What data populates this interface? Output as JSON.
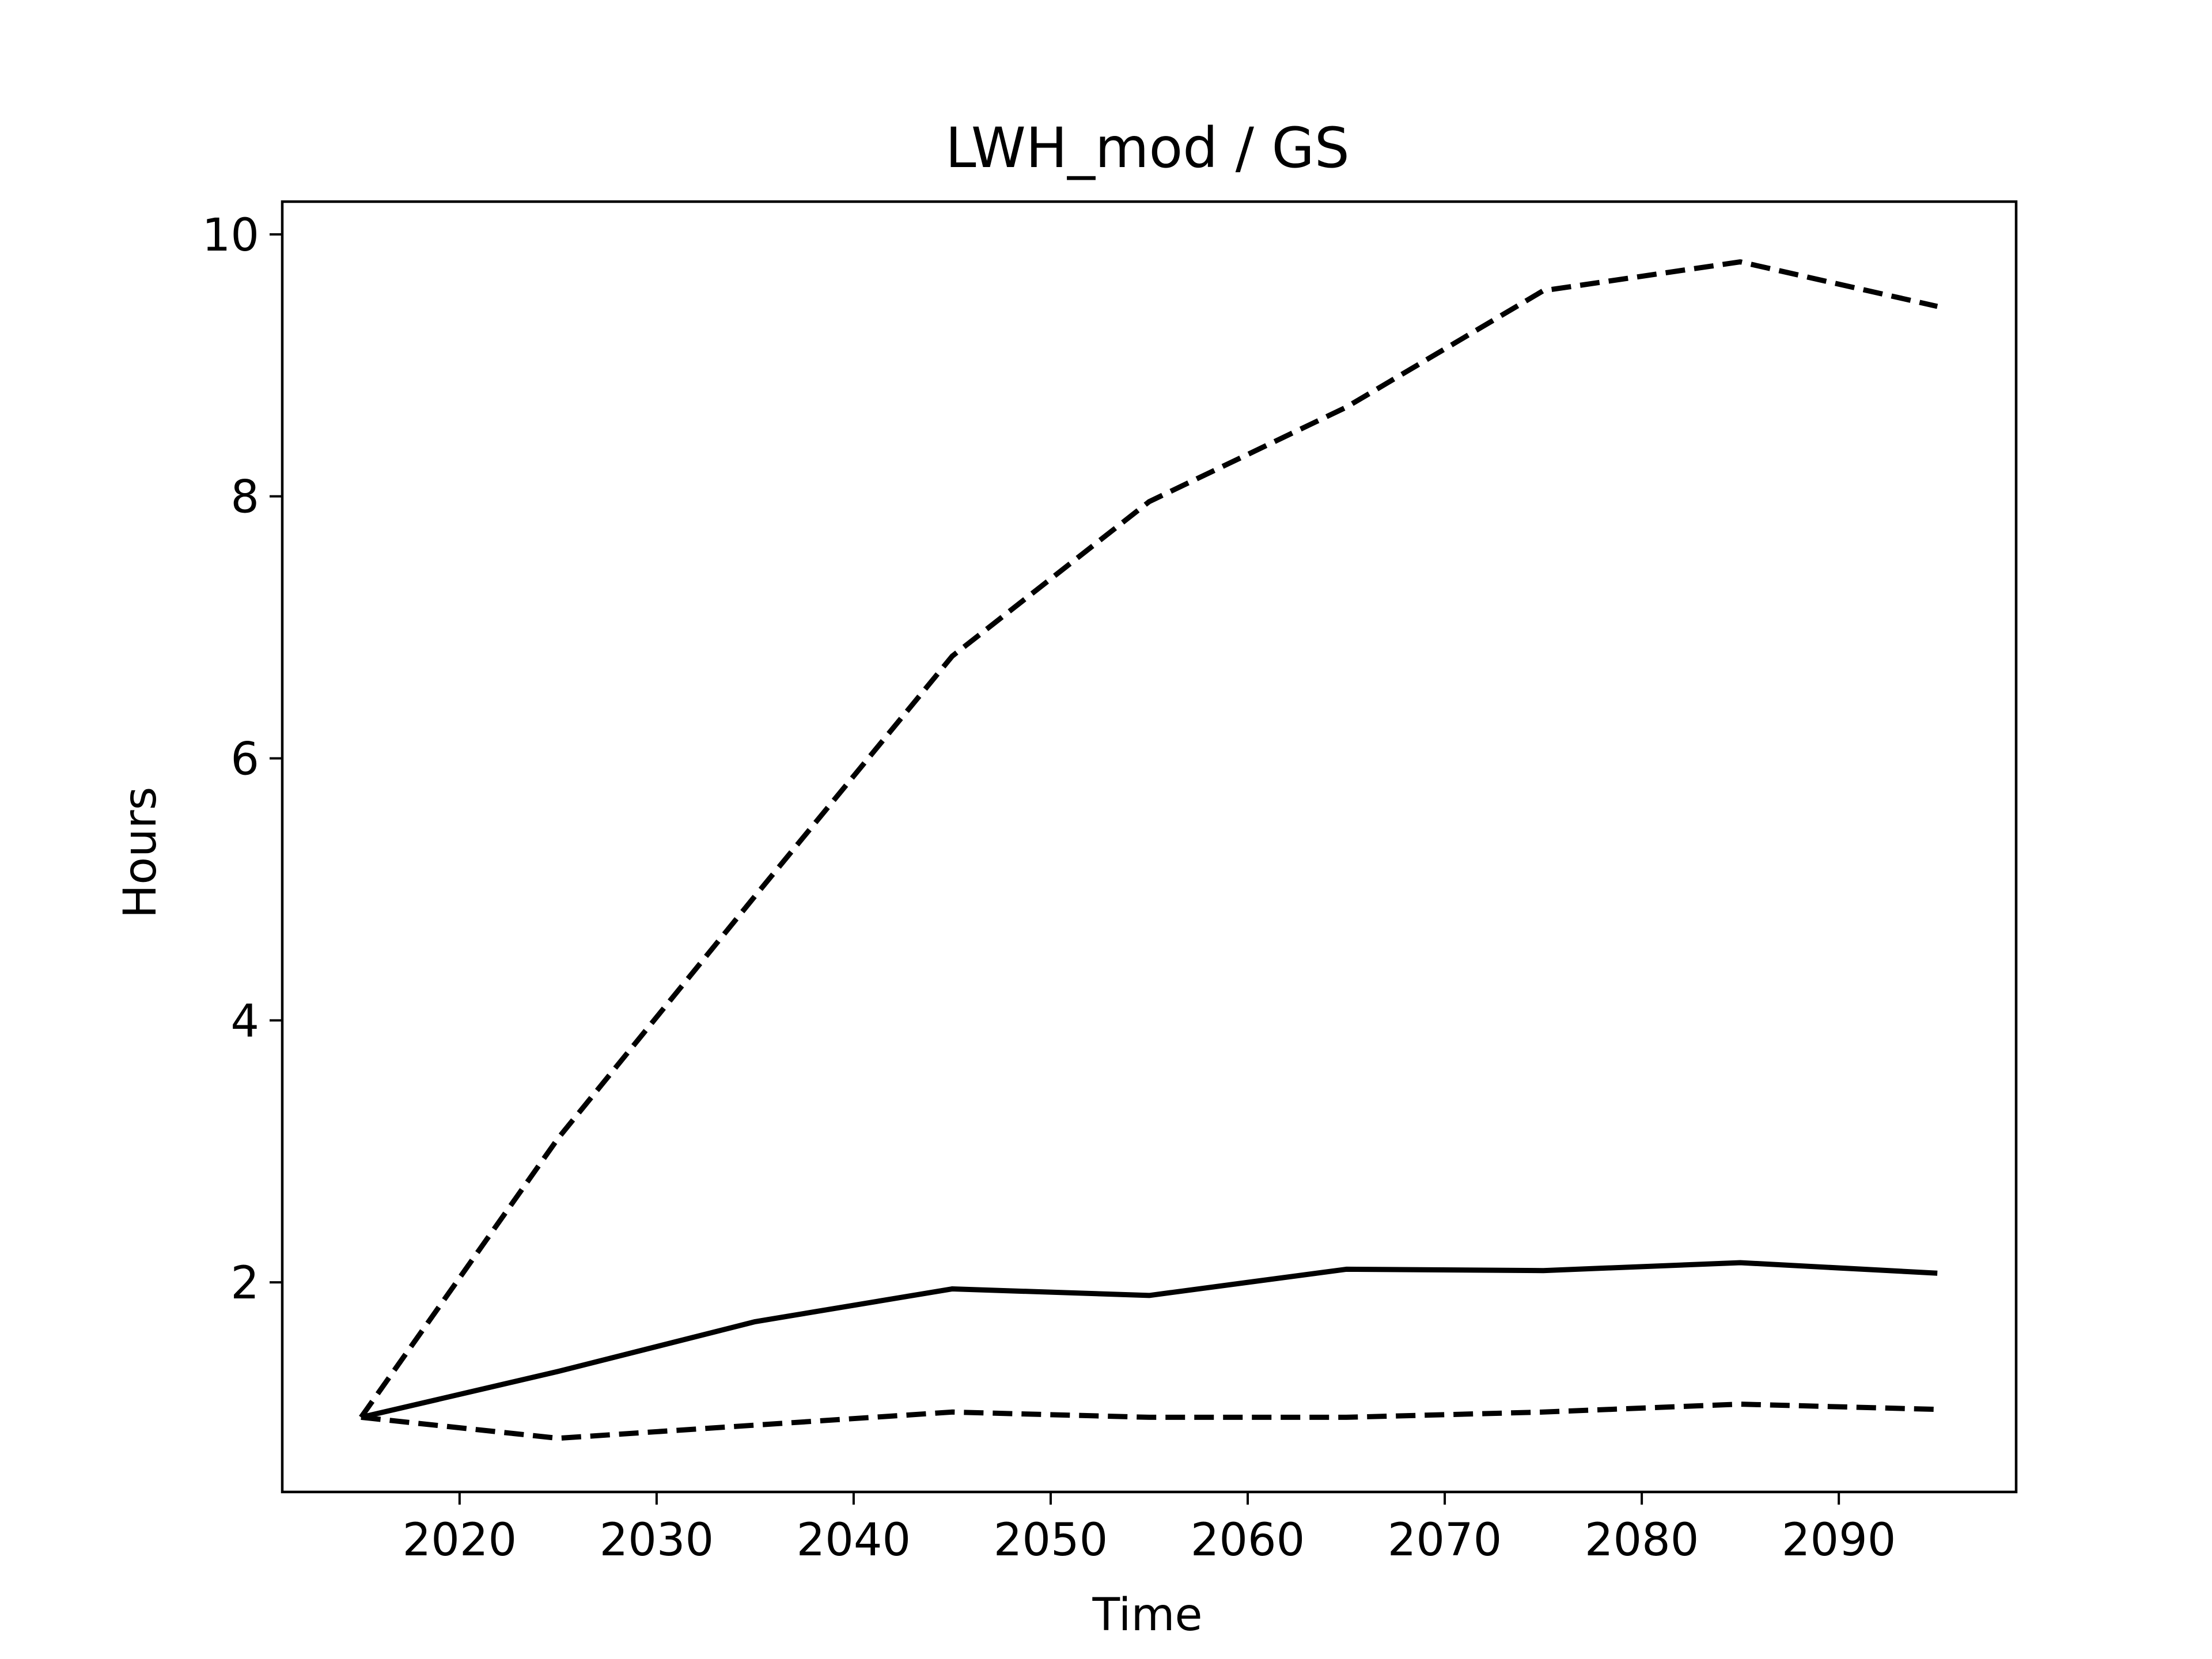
{
  "chart_data": {
    "type": "line",
    "title": "LWH_mod / GS",
    "xlabel": "Time",
    "ylabel": "Hours",
    "x": [
      2015,
      2025,
      2035,
      2045,
      2055,
      2065,
      2075,
      2085,
      2095
    ],
    "xlim": [
      2011.0,
      2099.0
    ],
    "ylim": [
      0.4,
      10.25
    ],
    "xticks": [
      2020,
      2030,
      2040,
      2050,
      2060,
      2070,
      2080,
      2090
    ],
    "yticks": [
      2,
      4,
      6,
      8,
      10
    ],
    "grid": false,
    "legend": "none",
    "series": [
      {
        "style": "solid",
        "color": "#000000",
        "values": [
          0.97,
          1.32,
          1.7,
          1.95,
          1.9,
          2.1,
          2.09,
          2.15,
          2.07
        ]
      },
      {
        "style": "dashed",
        "color": "#000000",
        "values": [
          0.97,
          3.1,
          4.95,
          6.78,
          7.96,
          8.68,
          9.57,
          9.79,
          9.45
        ]
      },
      {
        "style": "dashed",
        "color": "#000000",
        "values": [
          0.97,
          0.81,
          0.91,
          1.01,
          0.97,
          0.97,
          1.01,
          1.07,
          1.03
        ]
      }
    ]
  }
}
